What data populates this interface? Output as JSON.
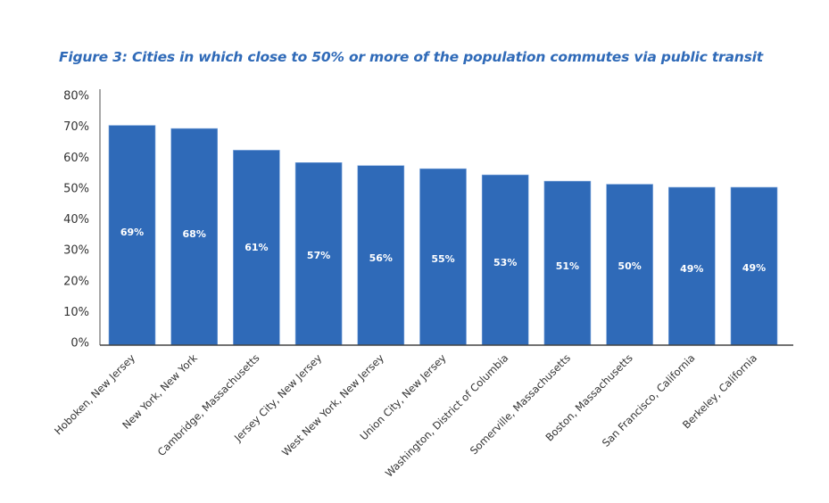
{
  "chart_data": {
    "type": "bar",
    "title": "Figure 3: Cities in which close to 50% or more of the population commutes via public transit",
    "xlabel": "",
    "ylabel": "",
    "ylim": [
      0,
      80
    ],
    "yticks": [
      "0%",
      "10%",
      "20%",
      "30%",
      "40%",
      "50%",
      "60%",
      "70%",
      "80%"
    ],
    "ytick_values": [
      0,
      10,
      20,
      30,
      40,
      50,
      60,
      70,
      80
    ],
    "grid": false,
    "categories": [
      "Hoboken, New Jersey",
      "New York, New York",
      "Cambridge, Massachusetts",
      "Jersey City, New Jersey",
      "West New York, New Jersey",
      "Union City, New Jersey",
      "Washington, District of Columbia",
      "Somerville, Massachusetts",
      "Boston, Massachusetts",
      "San Francisco, California",
      "Berkeley, California"
    ],
    "values": [
      69,
      68,
      61,
      57,
      56,
      55,
      53,
      51,
      50,
      49,
      49
    ],
    "data_labels": [
      "69%",
      "68%",
      "61%",
      "57%",
      "56%",
      "55%",
      "53%",
      "51%",
      "50%",
      "49%",
      "49%"
    ],
    "colors": {
      "bar": "#2f6ab8",
      "title": "#2f6ab8",
      "axis": "#555555"
    }
  }
}
